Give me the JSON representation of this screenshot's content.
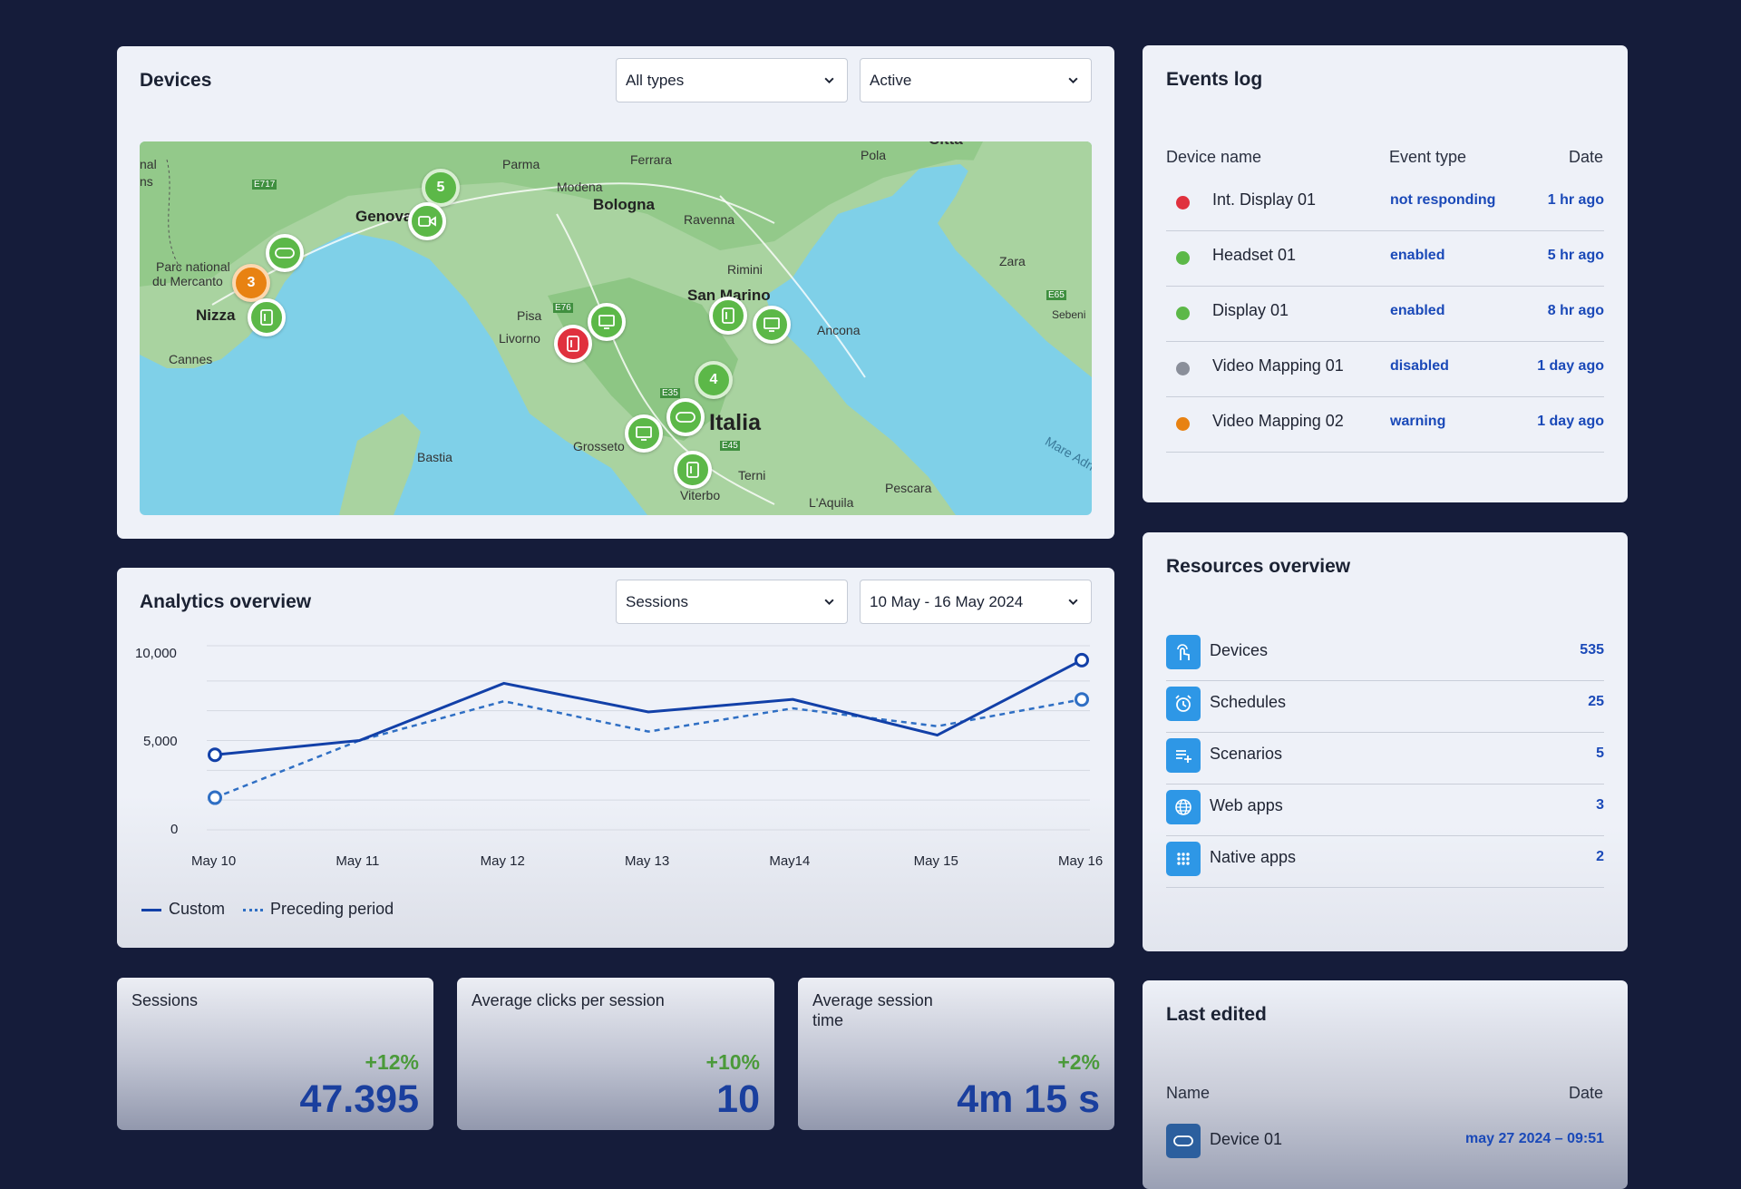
{
  "devices": {
    "title": "Devices",
    "type_filter": "All types",
    "status_filter": "Active",
    "map": {
      "labels": [
        "Parma",
        "Ferrara",
        "Pola",
        "Modena",
        "Bologna",
        "Genova",
        "Ravenna",
        "Parc national",
        "du Mercanto",
        "Rimini",
        "Zara",
        "San Marino",
        "Nizza",
        "Pisa",
        "Livorno",
        "Ancona",
        "Cannes",
        "Italia",
        "Grosseto",
        "Bastia",
        "Terni",
        "Viterbo",
        "Pescara",
        "L'Aquila",
        "Mare Adri",
        "E717",
        "E76",
        "E35",
        "E45",
        "E65",
        "Sebeni",
        "Città",
        "nal",
        "ns"
      ],
      "markers": [
        {
          "kind": "cluster",
          "count": "5",
          "color": "#5cb848"
        },
        {
          "kind": "camera-icon",
          "color": "#5cb848"
        },
        {
          "kind": "headset-icon",
          "color": "#5cb848"
        },
        {
          "kind": "cluster",
          "count": "3",
          "color": "#e88212"
        },
        {
          "kind": "tablet-icon",
          "color": "#5cb848"
        },
        {
          "kind": "display-icon",
          "color": "#5cb848"
        },
        {
          "kind": "tablet-icon",
          "color": "#e0313e"
        },
        {
          "kind": "tablet-icon",
          "color": "#5cb848"
        },
        {
          "kind": "display-icon",
          "color": "#5cb848"
        },
        {
          "kind": "cluster",
          "count": "4",
          "color": "#5cb848"
        },
        {
          "kind": "headset-icon",
          "color": "#5cb848"
        },
        {
          "kind": "display-icon",
          "color": "#5cb848"
        },
        {
          "kind": "tablet-icon",
          "color": "#5cb848"
        }
      ]
    }
  },
  "events": {
    "title": "Events log",
    "columns": {
      "name": "Device name",
      "type": "Event type",
      "date": "Date"
    },
    "rows": [
      {
        "name": "Int. Display 01",
        "type": "not responding",
        "date": "1 hr ago",
        "status_color": "#e0313e"
      },
      {
        "name": "Headset 01",
        "type": "enabled",
        "date": "5 hr ago",
        "status_color": "#5cb848"
      },
      {
        "name": "Display 01",
        "type": "enabled",
        "date": "8 hr ago",
        "status_color": "#5cb848"
      },
      {
        "name": "Video Mapping 01",
        "type": "disabled",
        "date": "1 day ago",
        "status_color": "#8a8f9a"
      },
      {
        "name": "Video Mapping 02",
        "type": "warning",
        "date": "1 day ago",
        "status_color": "#e88212"
      }
    ]
  },
  "analytics": {
    "title": "Analytics overview",
    "metric_filter": "Sessions",
    "date_filter": "10 May - 16 May 2024",
    "legend": {
      "custom": "Custom",
      "preceding": "Preceding period"
    }
  },
  "chart_data": {
    "type": "line",
    "categories": [
      "May 10",
      "May 11",
      "May 12",
      "May 13",
      "May14",
      "May 15",
      "May 16"
    ],
    "series": [
      {
        "name": "Custom",
        "style": "solid",
        "color": "#1240a8",
        "values": [
          4200,
          5000,
          8200,
          6600,
          7300,
          5300,
          9500
        ]
      },
      {
        "name": "Preceding period",
        "style": "dashed",
        "color": "#2f6fc4",
        "values": [
          1800,
          5000,
          7200,
          5500,
          6800,
          5800,
          7300
        ]
      }
    ],
    "yticks": [
      "10,000",
      "5,000",
      "0"
    ],
    "ylim": [
      0,
      10000
    ],
    "grid": true,
    "legend_position": "bottom-left"
  },
  "resources": {
    "title": "Resources overview",
    "items": [
      {
        "label": "Devices",
        "value": "535",
        "icon": "touch-icon"
      },
      {
        "label": "Schedules",
        "value": "25",
        "icon": "alarm-clock-icon"
      },
      {
        "label": "Scenarios",
        "value": "5",
        "icon": "playlist-add-icon"
      },
      {
        "label": "Web apps",
        "value": "3",
        "icon": "globe-icon"
      },
      {
        "label": "Native apps",
        "value": "2",
        "icon": "apps-grid-icon"
      }
    ]
  },
  "kpis": [
    {
      "label": "Sessions",
      "delta": "+12%",
      "value": "47.395"
    },
    {
      "label": "Average clicks per session",
      "delta": "+10%",
      "value": "10"
    },
    {
      "label": "Average session time",
      "delta": "+2%",
      "value": "4m 15 s"
    }
  ],
  "last_edited": {
    "title": "Last edited",
    "columns": {
      "name": "Name",
      "date": "Date"
    },
    "rows": [
      {
        "name": "Device 01",
        "date": "may 27 2024 – 09:51",
        "icon": "headset-icon"
      }
    ]
  },
  "colors": {
    "background": "#151c3a",
    "card": "#eef1f8",
    "accent": "#1a49b8",
    "green": "#5cb848",
    "orange": "#e88212",
    "red": "#e0313e"
  }
}
